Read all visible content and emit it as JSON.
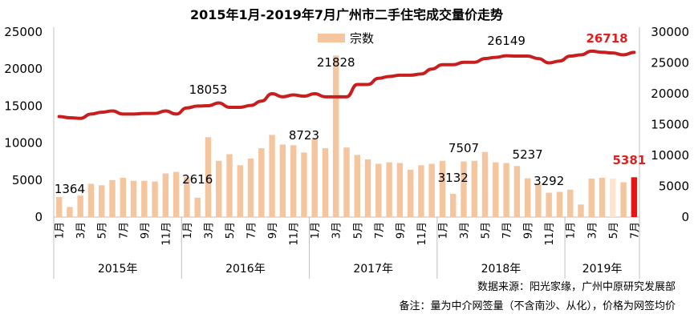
{
  "chart_data": {
    "type": "bar+line",
    "title": "2015年1月-2019年7月广州市二手住宅成交量价走势",
    "legend": "宗数",
    "legend_position": "top-center",
    "y_left": {
      "ticks": [
        "0",
        "5000",
        "10000",
        "15000",
        "20000",
        "25000"
      ],
      "range": [
        0,
        25000
      ]
    },
    "y_right": {
      "ticks": [
        "0",
        "5000",
        "10000",
        "15000",
        "20000",
        "25000",
        "30000"
      ],
      "range": [
        0,
        30000
      ]
    },
    "years": [
      "2015年",
      "2016年",
      "2017年",
      "2018年",
      "2019年"
    ],
    "month_labels": [
      "1月",
      "3月",
      "5月",
      "7月",
      "9月",
      "11月"
    ],
    "month_labels_2019": [
      "1月",
      "3月",
      "5月",
      "7月"
    ],
    "bars": {
      "name": "宗数",
      "values": [
        2700,
        1364,
        2900,
        4500,
        4300,
        5000,
        5300,
        4900,
        4900,
        4800,
        5900,
        6100,
        5400,
        2616,
        10800,
        7600,
        8500,
        7000,
        7900,
        9300,
        11100,
        9800,
        9700,
        8723,
        10500,
        9300,
        21828,
        9400,
        8400,
        7800,
        7200,
        7400,
        7300,
        6400,
        7000,
        7200,
        7600,
        3132,
        7507,
        7600,
        8800,
        7400,
        7300,
        6900,
        5237,
        4500,
        3292,
        3400,
        3700,
        1700,
        5200,
        5300,
        5200,
        4700,
        5381
      ]
    },
    "line": {
      "name": "网签均价",
      "values": [
        16300,
        16100,
        16000,
        16700,
        17000,
        17200,
        16700,
        16700,
        16800,
        16800,
        17200,
        16700,
        17700,
        18000,
        18053,
        18500,
        17800,
        17800,
        18100,
        18800,
        20000,
        19500,
        19800,
        19600,
        20000,
        19500,
        19500,
        19500,
        21500,
        21500,
        22500,
        22800,
        23000,
        23000,
        23200,
        24000,
        24700,
        24700,
        25100,
        25100,
        25700,
        25900,
        26149,
        26100,
        26100,
        25700,
        25000,
        25300,
        26100,
        26300,
        26900,
        26718,
        26600,
        26300,
        26700
      ]
    },
    "annotations": {
      "bar_values": [
        "1364",
        "2616",
        "8723",
        "21828",
        "3132",
        "7507",
        "5237",
        "3292",
        "5381"
      ],
      "line_values": [
        "18053",
        "26149",
        "26718"
      ]
    },
    "colors": {
      "bar": "#f4c6a0",
      "bar_highlight": "#ee1111",
      "line": "#c81e1e",
      "annotation_red": "#e02020"
    },
    "notes": {
      "source": "数据来源：阳光家缘，广州中原研究发展部",
      "remark": "备注：量为中介网签量（不含南沙、从化），价格为网签均价"
    }
  }
}
